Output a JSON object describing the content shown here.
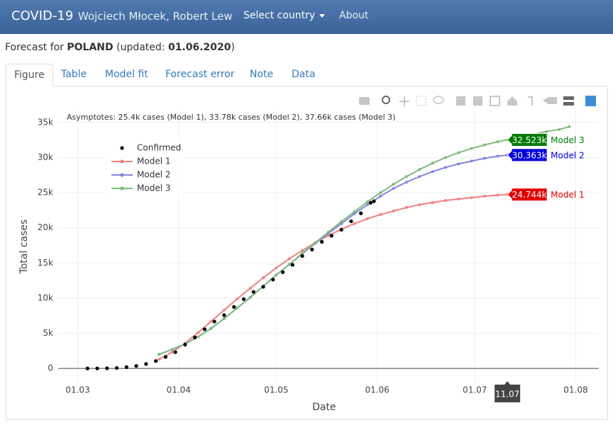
{
  "header": {
    "brand": "COVID-19",
    "authors": "Wojciech Młocek, Robert Lew",
    "menu": [
      "Select country",
      "About"
    ]
  },
  "forecast": {
    "prefix": "Forecast for ",
    "country": "POLAND",
    "mid": " (updated: ",
    "date": "01.06.2020",
    "suffix": ")"
  },
  "tabs": [
    "Figure",
    "Table",
    "Model fit",
    "Forecast error",
    "Note",
    "Data"
  ],
  "active_tab": 0,
  "chart_data": {
    "type": "line",
    "annotation": "Asymptotes: 25.4k cases (Model 1), 33.78k cases (Model 2), 37.66k cases (Model 3)",
    "x_label": "Date",
    "y_label": "Total cases",
    "xlim": [
      "24.02",
      "08.08"
    ],
    "xticks": [
      "01.03",
      "01.04",
      "01.05",
      "01.06",
      "01.07",
      "01.08"
    ],
    "ylim": [
      -1800,
      36800
    ],
    "yticks": [
      0,
      {
        "value": 5000,
        "label": "5k"
      },
      {
        "value": 10000,
        "label": "10k"
      },
      {
        "value": 15000,
        "label": "15k"
      },
      {
        "value": 20000,
        "label": "20k"
      },
      {
        "value": 25000,
        "label": "25k"
      },
      {
        "value": 30000,
        "label": "30k"
      },
      {
        "value": 35000,
        "label": "35k"
      }
    ],
    "grid": true,
    "legend": "upper left",
    "series": [
      {
        "name": "Confirmed",
        "color": "#000000",
        "mode": "markers",
        "x": [
          "04.03",
          "07.03",
          "10.03",
          "13.03",
          "16.03",
          "19.03",
          "22.03",
          "25.03",
          "28.03",
          "31.03",
          "03.04",
          "06.04",
          "09.04",
          "12.04",
          "15.04",
          "18.04",
          "21.04",
          "24.04",
          "27.04",
          "30.04",
          "03.05",
          "06.05",
          "09.05",
          "12.05",
          "15.05",
          "18.05",
          "21.05",
          "24.05",
          "27.05",
          "30.05",
          "31.05"
        ],
        "values": [
          1,
          6,
          22,
          68,
          177,
          355,
          634,
          1051,
          1638,
          2311,
          3383,
          4413,
          5575,
          6674,
          7582,
          8742,
          9856,
          10892,
          11617,
          12640,
          13693,
          14740,
          15996,
          16921,
          18016,
          18885,
          19739,
          20931,
          22074,
          23571,
          23786
        ]
      },
      {
        "name": "Model 1",
        "color": "#f08080",
        "mode": "lines+markers",
        "x": [
          "26.03",
          "30.03",
          "03.04",
          "07.04",
          "11.04",
          "15.04",
          "19.04",
          "23.04",
          "27.04",
          "01.05",
          "05.05",
          "09.05",
          "13.05",
          "17.05",
          "21.05",
          "25.05",
          "29.05",
          "02.06",
          "06.06",
          "10.06",
          "14.06",
          "18.06",
          "22.06",
          "26.06",
          "30.06",
          "04.07",
          "08.07",
          "11.07"
        ],
        "values": [
          1300,
          2300,
          3600,
          5100,
          6700,
          8300,
          9900,
          11400,
          12900,
          14300,
          15600,
          16800,
          17900,
          18900,
          19800,
          20600,
          21300,
          21900,
          22400,
          22900,
          23300,
          23600,
          23900,
          24100,
          24300,
          24500,
          24650,
          24744
        ]
      },
      {
        "name": "Model 2",
        "color": "#8585e0",
        "mode": "lines+markers",
        "x": [
          "26.03",
          "30.03",
          "03.04",
          "07.04",
          "11.04",
          "15.04",
          "19.04",
          "23.04",
          "27.04",
          "01.05",
          "05.05",
          "09.05",
          "13.05",
          "17.05",
          "21.05",
          "25.05",
          "29.05",
          "02.06",
          "06.06",
          "10.06",
          "14.06",
          "18.06",
          "22.06",
          "26.06",
          "30.06",
          "04.07",
          "08.07",
          "11.07"
        ],
        "values": [
          2000,
          2700,
          3500,
          4500,
          5700,
          7100,
          8600,
          10100,
          11700,
          13300,
          14800,
          16300,
          17800,
          19200,
          20600,
          22000,
          23300,
          24500,
          25600,
          26500,
          27300,
          28000,
          28600,
          29100,
          29500,
          29900,
          30200,
          30363
        ]
      },
      {
        "name": "Model 3",
        "color": "#7dbb7d",
        "mode": "lines+markers",
        "x": [
          "26.03",
          "30.03",
          "03.04",
          "07.04",
          "11.04",
          "15.04",
          "19.04",
          "23.04",
          "27.04",
          "01.05",
          "05.05",
          "09.05",
          "13.05",
          "17.05",
          "21.05",
          "25.05",
          "29.05",
          "02.06",
          "06.06",
          "10.06",
          "14.06",
          "18.06",
          "22.06",
          "26.06",
          "30.06",
          "04.07",
          "08.07",
          "11.07",
          "15.07",
          "19.07",
          "23.07",
          "27.07",
          "30.07"
        ],
        "values": [
          2000,
          2700,
          3500,
          4500,
          5700,
          7100,
          8600,
          10100,
          11700,
          13300,
          14800,
          16400,
          17900,
          19400,
          20900,
          22300,
          23700,
          25000,
          26200,
          27300,
          28300,
          29200,
          30000,
          30700,
          31300,
          31800,
          32250,
          32523,
          32900,
          33300,
          33700,
          34000,
          34400
        ]
      }
    ],
    "hover": {
      "x": "11.07",
      "labels": [
        {
          "series": 3,
          "value": 32523,
          "label": "32.523k",
          "color": "#007a00"
        },
        {
          "series": 2,
          "value": 30363,
          "label": "30.363k",
          "color": "#0000d8"
        },
        {
          "series": 1,
          "value": 24744,
          "label": "24.744k",
          "color": "#e00000"
        }
      ]
    }
  }
}
